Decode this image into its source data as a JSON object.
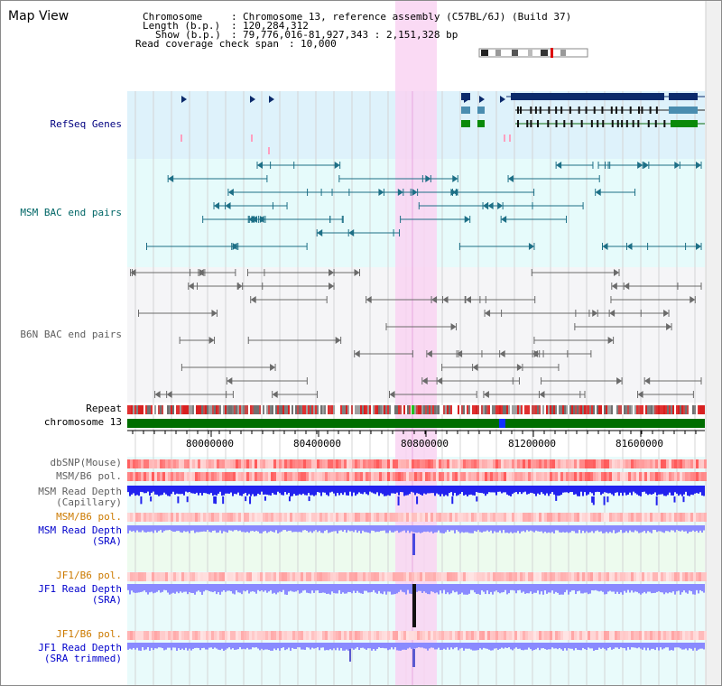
{
  "view": {
    "title": "Map View",
    "info": {
      "rows": [
        {
          "label": "Chromosome",
          "value": "Chromosome 13, reference assembly (C57BL/6J) (Build 37)"
        },
        {
          "label": "Length (b.p.)",
          "value": "120,284,312"
        },
        {
          "label": "Show (b.p.)",
          "value": "79,776,016-81,927,343 : 2,151,328 bp"
        }
      ],
      "coverage_label": "Read coverage check span",
      "coverage_value": "10,000"
    }
  },
  "tracks": {
    "refseq": {
      "label": "RefSeq Genes",
      "color": "#000080"
    },
    "msm_bac": {
      "label": "MSM BAC end pairs",
      "color": "#006666"
    },
    "b6n_bac": {
      "label": "B6N BAC end pairs",
      "color": "#606060"
    },
    "repeat": {
      "label": "Repeat"
    },
    "chromosome": {
      "label": "chromosome 13"
    },
    "dbsnp": {
      "label": "dbSNP(Mouse)"
    },
    "msm_pol": {
      "label": "MSM/B6 pol."
    },
    "msm_depth_cap": {
      "label1": "MSM Read Depth",
      "label2": "(Capillary)"
    },
    "msm_pol_sra": {
      "label": "MSM/B6 pol."
    },
    "msm_depth_sra": {
      "label1": "MSM Read Depth",
      "label2": "(SRA)"
    },
    "jf1_pol": {
      "label": "JF1/B6 pol."
    },
    "jf1_depth_sra": {
      "label1": "JF1 Read Depth",
      "label2": "(SRA)"
    },
    "jf1_pol_trim": {
      "label": "JF1/B6 pol."
    },
    "jf1_depth_trim": {
      "label1": "JF1 Read Depth",
      "label2": "(SRA trimmed)"
    }
  },
  "axis": {
    "ticks": [
      "80000000",
      "80400000",
      "80800000",
      "81200000",
      "81600000"
    ]
  },
  "highlight_region": {
    "color": "#f9d4f2"
  },
  "colors": {
    "refseq_bg": "#def2fb",
    "msm_bg": "#e6fbfb",
    "b6n_bg": "#f5f5f7",
    "lower_bg": "#e9fbfb",
    "chromosome": "#006e00",
    "depth_blue": "#2222ee",
    "depth_light": "#8a8aff",
    "pol_red": "#ff5050"
  }
}
